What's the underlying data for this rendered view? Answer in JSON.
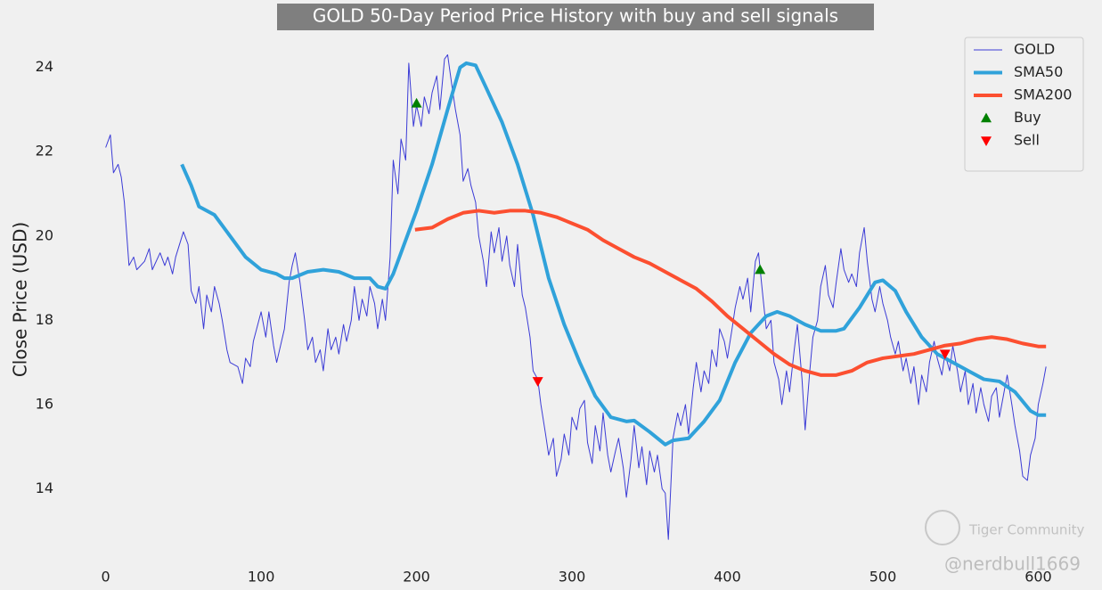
{
  "chart_data": {
    "type": "line",
    "title": "GOLD 50-Day Period Price History with buy and sell signals",
    "ylabel": "Close Price (USD)",
    "xlim": [
      -68,
      641
    ],
    "ylim": [
      11.6,
      25.6
    ],
    "xticks": [
      0,
      100,
      200,
      300,
      400,
      500,
      600
    ],
    "yticks": [
      14,
      16,
      18,
      20,
      22,
      24
    ],
    "grid": false,
    "legend": "upper right",
    "annotations": [
      "Tiger Community",
      "@nerdbull1669"
    ],
    "series": [
      {
        "name": "GOLD",
        "color": "#3b3bd6",
        "width": 1,
        "x": [
          0,
          3,
          5,
          8,
          10,
          12,
          15,
          18,
          20,
          25,
          28,
          30,
          35,
          38,
          40,
          43,
          45,
          50,
          53,
          55,
          58,
          60,
          63,
          65,
          68,
          70,
          73,
          75,
          78,
          80,
          85,
          88,
          90,
          93,
          95,
          100,
          103,
          105,
          108,
          110,
          115,
          118,
          120,
          122,
          125,
          128,
          130,
          133,
          135,
          138,
          140,
          143,
          145,
          148,
          150,
          153,
          155,
          158,
          160,
          163,
          165,
          168,
          170,
          173,
          175,
          178,
          180,
          183,
          185,
          188,
          190,
          193,
          195,
          198,
          200,
          203,
          205,
          208,
          210,
          213,
          215,
          218,
          220,
          223,
          225,
          228,
          230,
          233,
          235,
          238,
          240,
          243,
          245,
          248,
          250,
          253,
          255,
          258,
          260,
          263,
          265,
          268,
          270,
          273,
          275,
          278,
          280,
          283,
          285,
          288,
          290,
          293,
          295,
          298,
          300,
          303,
          305,
          308,
          310,
          313,
          315,
          318,
          320,
          323,
          325,
          328,
          330,
          333,
          335,
          338,
          340,
          343,
          345,
          348,
          350,
          353,
          355,
          358,
          360,
          362,
          365,
          368,
          370,
          373,
          375,
          378,
          380,
          383,
          385,
          388,
          390,
          393,
          395,
          398,
          400,
          403,
          405,
          408,
          410,
          413,
          415,
          418,
          420,
          423,
          425,
          428,
          430,
          433,
          435,
          438,
          440,
          443,
          445,
          448,
          450,
          453,
          455,
          458,
          460,
          463,
          465,
          468,
          470,
          473,
          475,
          478,
          480,
          483,
          485,
          488,
          490,
          493,
          495,
          498,
          500,
          503,
          505,
          508,
          510,
          513,
          515,
          518,
          520,
          523,
          525,
          528,
          530,
          533,
          535,
          538,
          540,
          543,
          545,
          548,
          550,
          553,
          555,
          558,
          560,
          563,
          565,
          568,
          570,
          573,
          575,
          578,
          580,
          583,
          585,
          588,
          590,
          593,
          595,
          598,
          600,
          603,
          605
        ],
        "values": [
          22.1,
          22.4,
          21.5,
          21.7,
          21.4,
          20.8,
          19.3,
          19.5,
          19.2,
          19.4,
          19.7,
          19.2,
          19.6,
          19.3,
          19.5,
          19.1,
          19.5,
          20.1,
          19.8,
          18.7,
          18.4,
          18.8,
          17.8,
          18.6,
          18.2,
          18.8,
          18.4,
          18.0,
          17.3,
          17.0,
          16.9,
          16.5,
          17.1,
          16.9,
          17.5,
          18.2,
          17.6,
          18.2,
          17.4,
          17.0,
          17.8,
          18.9,
          19.3,
          19.6,
          18.9,
          18.0,
          17.3,
          17.6,
          17.0,
          17.3,
          16.8,
          17.8,
          17.3,
          17.6,
          17.2,
          17.9,
          17.5,
          18.0,
          18.8,
          18.0,
          18.5,
          18.1,
          18.8,
          18.4,
          17.8,
          18.5,
          18.0,
          19.5,
          21.8,
          21.0,
          22.3,
          21.8,
          24.1,
          22.6,
          23.1,
          22.6,
          23.3,
          22.9,
          23.4,
          23.8,
          23.0,
          24.2,
          24.3,
          23.5,
          23.0,
          22.4,
          21.3,
          21.6,
          21.2,
          20.8,
          20.0,
          19.4,
          18.8,
          20.1,
          19.6,
          20.2,
          19.4,
          20.0,
          19.3,
          18.8,
          19.8,
          18.6,
          18.3,
          17.6,
          16.8,
          16.6,
          16.0,
          15.3,
          14.8,
          15.2,
          14.3,
          14.7,
          15.3,
          14.8,
          15.7,
          15.4,
          15.9,
          16.1,
          15.1,
          14.6,
          15.5,
          14.9,
          15.8,
          14.8,
          14.4,
          14.9,
          15.2,
          14.5,
          13.8,
          14.7,
          15.5,
          14.5,
          15.0,
          14.1,
          14.9,
          14.4,
          14.8,
          14.0,
          13.9,
          12.8,
          15.2,
          15.8,
          15.5,
          16.0,
          15.3,
          16.4,
          17.0,
          16.3,
          16.8,
          16.5,
          17.3,
          16.9,
          17.8,
          17.5,
          17.1,
          17.8,
          18.3,
          18.8,
          18.5,
          19.0,
          18.2,
          19.4,
          19.6,
          18.5,
          17.8,
          18.0,
          17.0,
          16.6,
          16.0,
          16.8,
          16.3,
          17.3,
          17.9,
          16.6,
          15.4,
          16.8,
          17.6,
          18.0,
          18.8,
          19.3,
          18.6,
          18.3,
          18.9,
          19.7,
          19.2,
          18.9,
          19.1,
          18.8,
          19.6,
          20.2,
          19.4,
          18.5,
          18.2,
          18.8,
          18.4,
          18.0,
          17.6,
          17.2,
          17.5,
          16.8,
          17.1,
          16.5,
          16.9,
          16.0,
          16.7,
          16.3,
          17.0,
          17.5,
          17.1,
          16.7,
          17.2,
          16.8,
          17.4,
          16.8,
          16.3,
          16.8,
          16.0,
          16.5,
          15.8,
          16.4,
          16.0,
          15.6,
          16.2,
          16.4,
          15.7,
          16.3,
          16.7,
          16.0,
          15.5,
          14.9,
          14.3,
          14.2,
          14.8,
          15.2,
          16.0,
          16.5,
          16.9
        ]
      },
      {
        "name": "SMA50",
        "color": "#30a2da",
        "width": 4,
        "x": [
          49,
          55,
          60,
          70,
          80,
          90,
          100,
          110,
          115,
          120,
          130,
          140,
          150,
          160,
          170,
          175,
          180,
          185,
          190,
          200,
          210,
          220,
          228,
          232,
          238,
          245,
          255,
          265,
          275,
          285,
          295,
          305,
          315,
          325,
          335,
          340,
          350,
          360,
          365,
          375,
          385,
          395,
          405,
          415,
          425,
          432,
          440,
          450,
          460,
          470,
          475,
          485,
          495,
          500,
          508,
          515,
          525,
          535,
          545,
          555,
          565,
          575,
          585,
          595,
          600,
          605
        ],
        "values": [
          21.7,
          21.2,
          20.7,
          20.5,
          20.0,
          19.5,
          19.2,
          19.1,
          19.0,
          19.0,
          19.15,
          19.2,
          19.15,
          19.0,
          19.0,
          18.8,
          18.75,
          19.1,
          19.6,
          20.6,
          21.7,
          23.0,
          24.0,
          24.1,
          24.05,
          23.5,
          22.7,
          21.7,
          20.5,
          19.0,
          17.9,
          17.0,
          16.2,
          15.7,
          15.6,
          15.62,
          15.35,
          15.05,
          15.15,
          15.2,
          15.6,
          16.1,
          17.0,
          17.7,
          18.1,
          18.2,
          18.1,
          17.9,
          17.75,
          17.75,
          17.8,
          18.3,
          18.9,
          18.95,
          18.7,
          18.2,
          17.6,
          17.2,
          17.0,
          16.8,
          16.6,
          16.55,
          16.3,
          15.85,
          15.75,
          15.75
        ]
      },
      {
        "name": "SMA200",
        "color": "#fc4f30",
        "width": 4,
        "x": [
          199,
          210,
          220,
          230,
          240,
          250,
          260,
          270,
          280,
          290,
          300,
          310,
          320,
          330,
          340,
          350,
          360,
          370,
          380,
          390,
          400,
          410,
          420,
          430,
          440,
          450,
          460,
          470,
          480,
          490,
          500,
          510,
          520,
          530,
          540,
          550,
          560,
          570,
          580,
          590,
          600,
          605
        ],
        "values": [
          20.15,
          20.2,
          20.4,
          20.55,
          20.6,
          20.55,
          20.6,
          20.6,
          20.55,
          20.45,
          20.3,
          20.15,
          19.9,
          19.7,
          19.5,
          19.35,
          19.15,
          18.95,
          18.75,
          18.45,
          18.1,
          17.8,
          17.5,
          17.2,
          16.95,
          16.8,
          16.7,
          16.7,
          16.8,
          17.0,
          17.1,
          17.15,
          17.2,
          17.3,
          17.4,
          17.45,
          17.55,
          17.6,
          17.55,
          17.45,
          17.38,
          17.38
        ]
      },
      {
        "name": "Buy",
        "color": "#008000",
        "marker": "triangle-up",
        "x": [
          200,
          421
        ],
        "values": [
          23.15,
          19.2
        ]
      },
      {
        "name": "Sell",
        "color": "#ff0000",
        "marker": "triangle-down",
        "x": [
          278,
          540
        ],
        "values": [
          16.55,
          17.2
        ]
      }
    ]
  }
}
